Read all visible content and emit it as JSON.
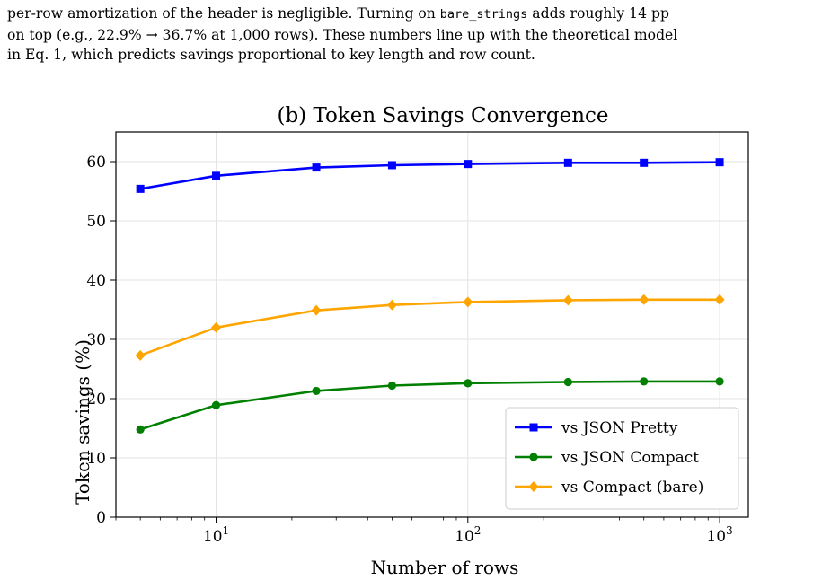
{
  "paragraph": {
    "line1_pre": "per-row amortization of the header is negligible. Turning on ",
    "line1_code": "bare_strings",
    "line1_post": " adds roughly 14 pp",
    "line2": "on top (e.g., 22.9% → 36.7% at 1,000 rows). These numbers line up with the theoretical model",
    "line3": "in Eq. 1, which predicts savings proportional to key length and row count."
  },
  "chart_data": {
    "type": "line",
    "title": "(b) Token Savings Convergence",
    "xlabel": "Number of rows",
    "ylabel": "Token savings (%)",
    "xscale": "log",
    "xlim": [
      4,
      1300
    ],
    "ylim": [
      0,
      65
    ],
    "yticks": [
      0,
      10,
      20,
      30,
      40,
      50,
      60
    ],
    "xticks": [
      {
        "value": 10,
        "base": "10",
        "exp": "1"
      },
      {
        "value": 100,
        "base": "10",
        "exp": "2"
      },
      {
        "value": 1000,
        "base": "10",
        "exp": "3"
      }
    ],
    "grid": true,
    "legend_position": "lower-right",
    "x": [
      5,
      10,
      25,
      50,
      100,
      250,
      500,
      1000
    ],
    "series": [
      {
        "name": "vs JSON Pretty",
        "color": "#0000ff",
        "marker": "square",
        "values": [
          55.4,
          57.6,
          59.0,
          59.4,
          59.6,
          59.8,
          59.8,
          59.9
        ]
      },
      {
        "name": "vs JSON Compact",
        "color": "#008000",
        "marker": "circle",
        "values": [
          14.8,
          18.9,
          21.3,
          22.2,
          22.6,
          22.8,
          22.9,
          22.9
        ]
      },
      {
        "name": "vs Compact (bare)",
        "color": "#ffa500",
        "marker": "diamond",
        "values": [
          27.3,
          32.0,
          34.9,
          35.8,
          36.3,
          36.6,
          36.7,
          36.7
        ]
      }
    ]
  }
}
